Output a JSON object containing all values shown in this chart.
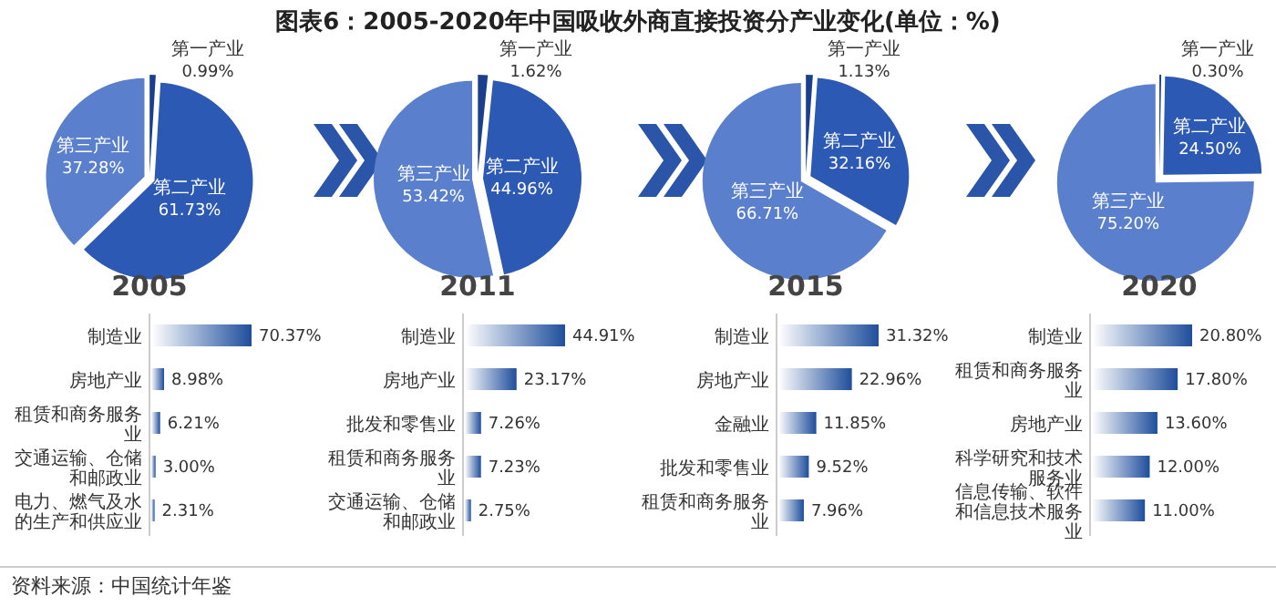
{
  "chart_data": [
    {
      "type": "pie",
      "title": "图表6：2005-2020年中国吸收外商直接投资分产业变化(单位：%)",
      "xlabel": "2005",
      "categories": [
        "第一产业",
        "第二产业",
        "第三产业"
      ],
      "values": [
        0.99,
        61.73,
        37.28
      ],
      "value_labels": [
        "0.99%",
        "61.73%",
        "37.28%"
      ],
      "colors": [
        "#1c3f8c",
        "#2c59b3",
        "#5a7fcc"
      ],
      "data_labels": true
    },
    {
      "type": "pie",
      "xlabel": "2011",
      "categories": [
        "第一产业",
        "第二产业",
        "第三产业"
      ],
      "values": [
        1.62,
        44.96,
        53.42
      ],
      "value_labels": [
        "1.62%",
        "44.96%",
        "53.42%"
      ],
      "colors": [
        "#1c3f8c",
        "#2c59b3",
        "#5a7fcc"
      ],
      "data_labels": true
    },
    {
      "type": "pie",
      "xlabel": "2015",
      "categories": [
        "第一产业",
        "第二产业",
        "第三产业"
      ],
      "values": [
        1.13,
        32.16,
        66.71
      ],
      "value_labels": [
        "1.13%",
        "32.16%",
        "66.71%"
      ],
      "colors": [
        "#1c3f8c",
        "#2c59b3",
        "#5a7fcc"
      ],
      "data_labels": true
    },
    {
      "type": "pie",
      "xlabel": "2020",
      "categories": [
        "第一产业",
        "第二产业",
        "第三产业"
      ],
      "values": [
        0.3,
        24.5,
        75.2
      ],
      "value_labels": [
        "0.30%",
        "24.50%",
        "75.20%"
      ],
      "colors": [
        "#1c3f8c",
        "#2c59b3",
        "#5a7fcc"
      ],
      "data_labels": true
    },
    {
      "type": "bar",
      "orientation": "horizontal",
      "categories": [
        "制造业",
        "房地产业",
        "租赁和商务服务业",
        "交通运输、仓储和邮政业",
        "电力、燃气及水的生产和供应业"
      ],
      "values": [
        70.37,
        8.98,
        6.21,
        3.0,
        2.31
      ],
      "value_labels": [
        "70.37%",
        "8.98%",
        "6.21%",
        "3.00%",
        "2.31%"
      ],
      "color": "#1f4e9c"
    },
    {
      "type": "bar",
      "orientation": "horizontal",
      "categories": [
        "制造业",
        "房地产业",
        "批发和零售业",
        "租赁和商务服务业",
        "交通运输、仓储和邮政业"
      ],
      "values": [
        44.91,
        23.17,
        7.26,
        7.23,
        2.75
      ],
      "value_labels": [
        "44.91%",
        "23.17%",
        "7.26%",
        "7.23%",
        "2.75%"
      ],
      "color": "#1f4e9c"
    },
    {
      "type": "bar",
      "orientation": "horizontal",
      "categories": [
        "制造业",
        "房地产业",
        "金融业",
        "批发和零售业",
        "租赁和商务服务业"
      ],
      "values": [
        31.32,
        22.96,
        11.85,
        9.52,
        7.96
      ],
      "value_labels": [
        "31.32%",
        "22.96%",
        "11.85%",
        "9.52%",
        "7.96%"
      ],
      "color": "#1f4e9c"
    },
    {
      "type": "bar",
      "orientation": "horizontal",
      "categories": [
        "制造业",
        "租赁和商务服务业",
        "房地产业",
        "科学研究和技术服务业",
        "信息传输、软件和信息技术服务业"
      ],
      "values": [
        20.8,
        17.8,
        13.6,
        12.0,
        11.0
      ],
      "value_labels": [
        "20.80%",
        "17.80%",
        "13.60%",
        "12.00%",
        "11.00%"
      ],
      "color": "#1f4e9c",
      "annotations": [
        "资料来源：中国统计年鉴"
      ]
    }
  ]
}
